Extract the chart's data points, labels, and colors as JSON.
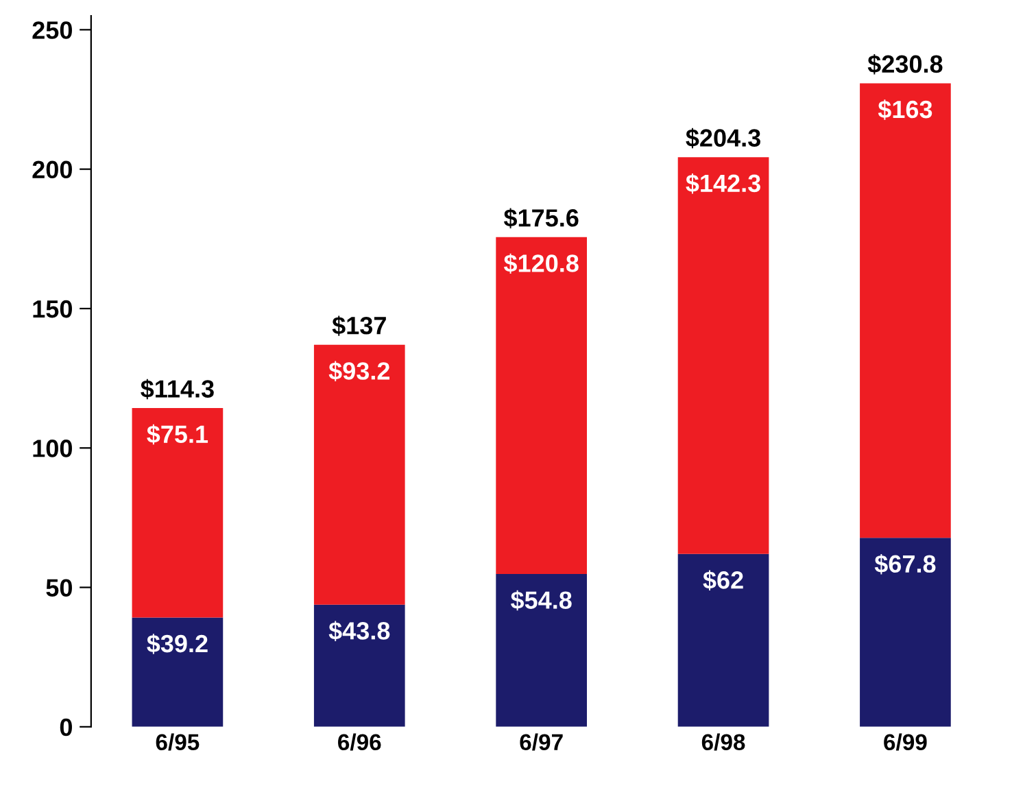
{
  "chart_data": {
    "type": "bar",
    "stacked": true,
    "categories": [
      "6/95",
      "6/96",
      "6/97",
      "6/98",
      "6/99"
    ],
    "series": [
      {
        "color": "#1c1c6b",
        "values": [
          39.2,
          43.8,
          54.8,
          62,
          67.8
        ],
        "value_labels": [
          "$39.2",
          "$43.8",
          "$54.8",
          "$62",
          "$67.8"
        ]
      },
      {
        "color": "#ee1d23",
        "values": [
          75.1,
          93.2,
          120.8,
          142.3,
          163
        ],
        "value_labels": [
          "$75.1",
          "$93.2",
          "$120.8",
          "$142.3",
          "$163"
        ]
      }
    ],
    "totals": [
      "$114.3",
      "$137",
      "$175.6",
      "$204.3",
      "$230.8"
    ],
    "ylim": [
      0,
      255
    ],
    "yticks": [
      0,
      50,
      100,
      150,
      200,
      250
    ],
    "grid": false,
    "legend": false
  }
}
